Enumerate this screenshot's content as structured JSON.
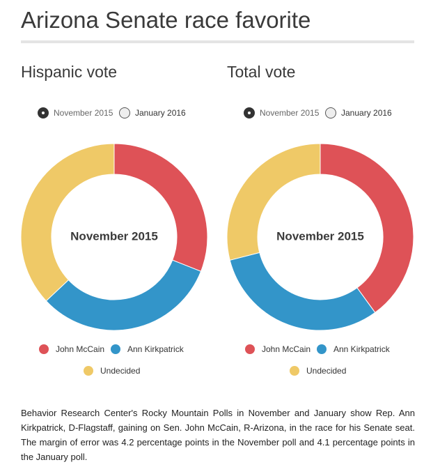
{
  "title": "Arizona Senate race favorite",
  "colors": {
    "mccain": "#de5257",
    "kirkpatrick": "#3395c9",
    "undecided": "#efc967"
  },
  "radio_options": [
    "November 2015",
    "January 2016"
  ],
  "selected_option": "November 2015",
  "legend": {
    "mccain": "John McCain",
    "kirkpatrick": "Ann Kirkpatrick",
    "undecided": "Undecided"
  },
  "chart_data": [
    {
      "type": "pie",
      "title": "Hispanic vote",
      "center_label": "November 2015",
      "categories": [
        "John McCain",
        "Ann Kirkpatrick",
        "Undecided"
      ],
      "values": [
        31,
        32,
        37
      ]
    },
    {
      "type": "pie",
      "title": "Total vote",
      "center_label": "November 2015",
      "categories": [
        "John McCain",
        "Ann Kirkpatrick",
        "Undecided"
      ],
      "values": [
        40,
        31,
        29
      ]
    }
  ],
  "caption": "Behavior Research Center's Rocky Mountain Polls in November and January show Rep. Ann Kirkpatrick, D-Flagstaff, gaining on Sen. John McCain, R-Arizona, in the race for his Senate seat. The margin of error was 4.2 percentage points in the November poll and 4.1 percentage points in the January poll."
}
